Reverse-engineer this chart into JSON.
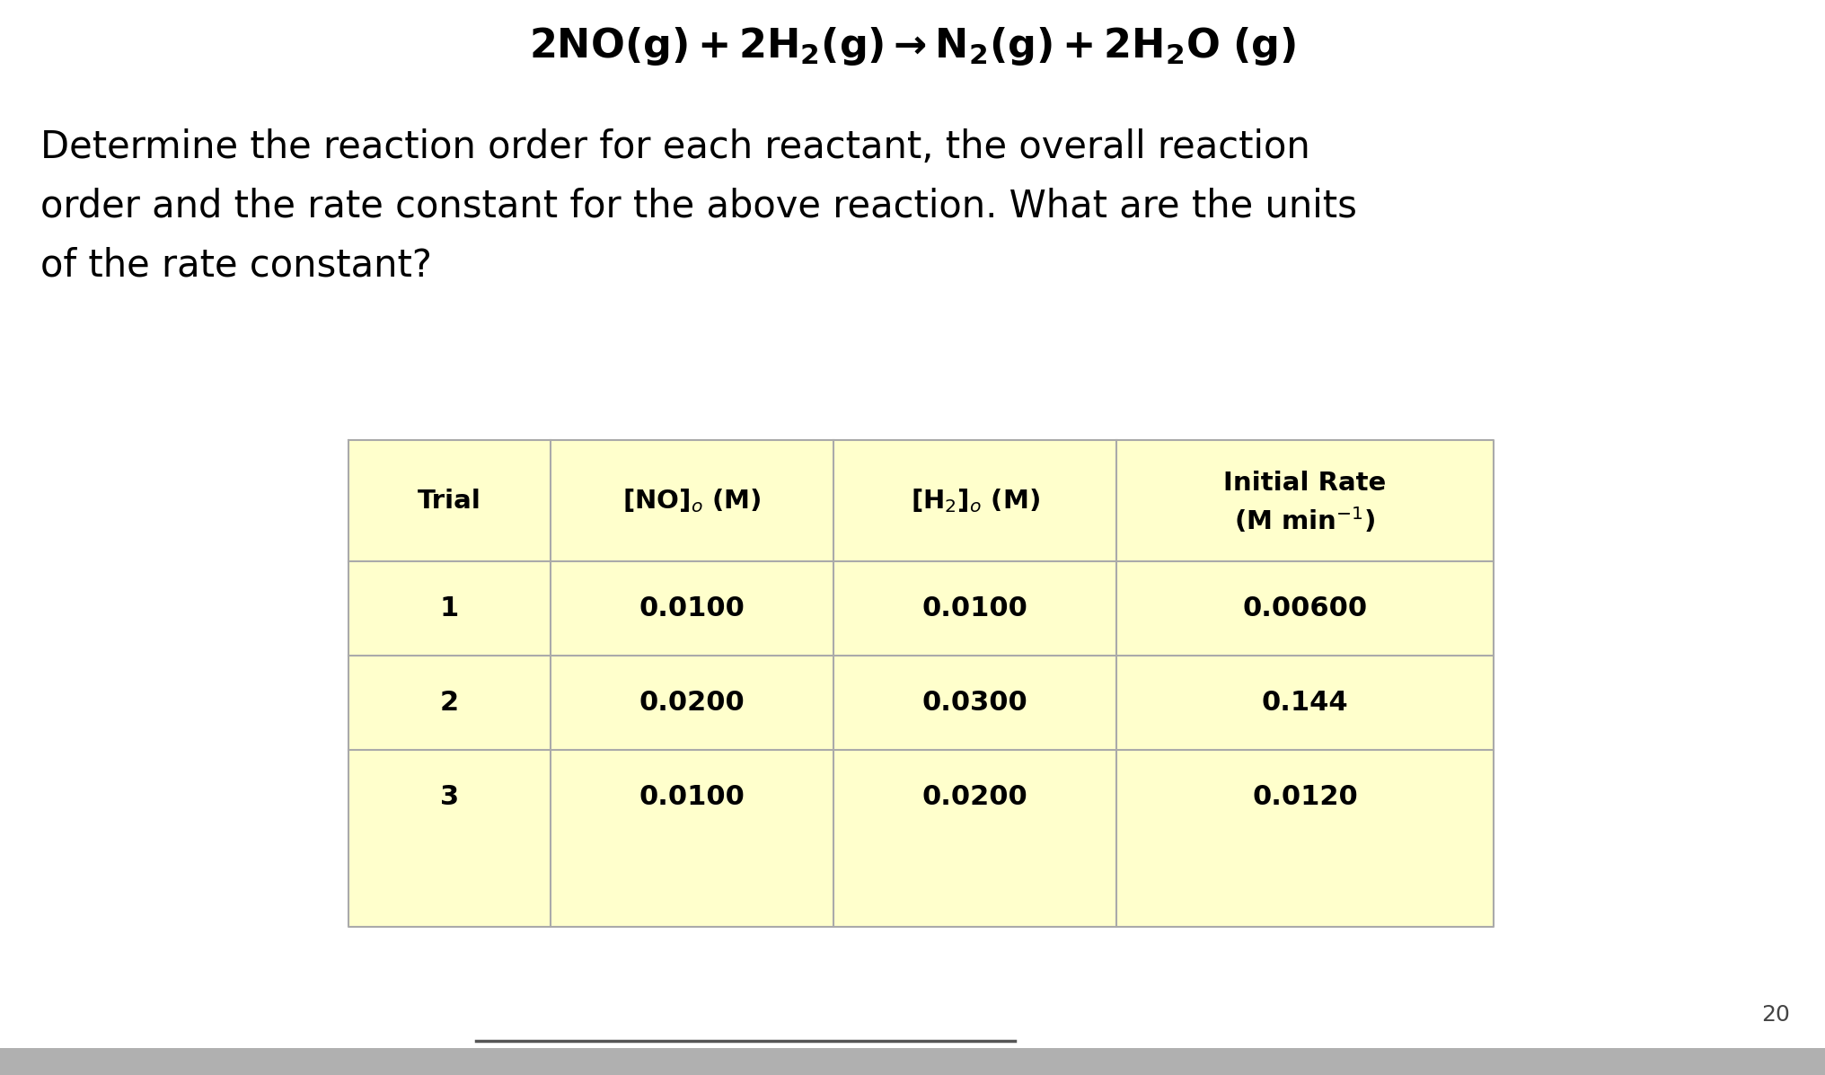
{
  "bg_color": "#ffffff",
  "table_bg": "#ffffcc",
  "table_line_color": "#aaaaaa",
  "col_headers_line1": [
    "Trial",
    "[NO]",
    "[H₂]",
    "Initial Rate"
  ],
  "col_headers_line2": [
    "",
    "₀ (M)",
    "₀ (M)",
    "(M min⁻¹)"
  ],
  "rows": [
    [
      "1",
      "0.0100",
      "0.0100",
      "0.00600"
    ],
    [
      "2",
      "0.0200",
      "0.0300",
      "0.144"
    ],
    [
      "3",
      "0.0100",
      "0.0200",
      "0.0120"
    ]
  ],
  "page_number": "20",
  "title_fontsize": 32,
  "body_fontsize": 30,
  "table_header_fontsize": 21,
  "table_data_fontsize": 22,
  "bottom_bar_color": "#b0b0b0",
  "bottom_line_color": "#555555"
}
